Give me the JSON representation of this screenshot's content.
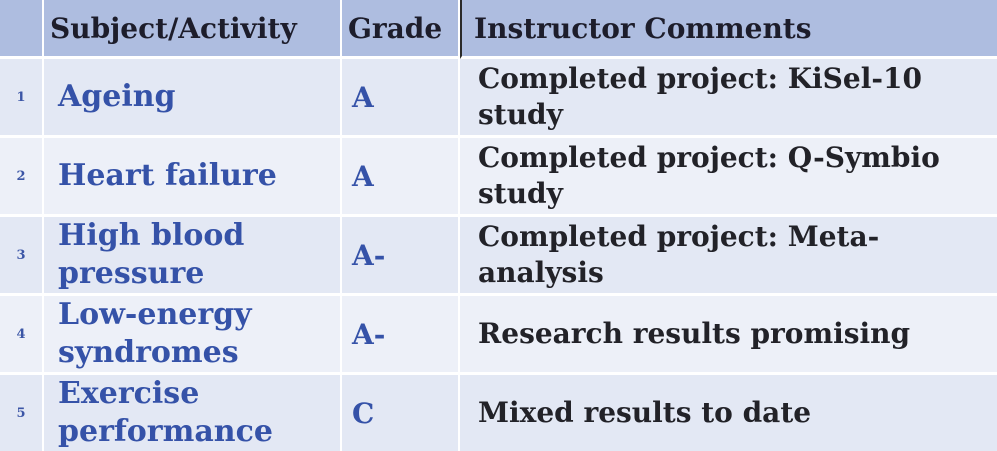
{
  "table": {
    "headers": {
      "num": "",
      "subject": "Subject/Activity",
      "grade": "Grade",
      "comments": "Instructor Comments"
    },
    "rows": [
      {
        "num": "1",
        "subject": "Ageing",
        "grade": "A",
        "comment_line1": "Completed project: KiSel-10",
        "comment_line2": "study"
      },
      {
        "num": "2",
        "subject": "Heart failure",
        "grade": "A",
        "comment_line1": "Completed project: Q-Symbio",
        "comment_line2": "study"
      },
      {
        "num": "3",
        "subject_line1": "High blood",
        "subject_line2": "pressure",
        "grade": "A-",
        "comment_line1": "Completed project: Meta-",
        "comment_line2": "analysis"
      },
      {
        "num": "4",
        "subject_line1": "Low-energy",
        "subject_line2": "syndromes",
        "grade": "A-",
        "comment_line1": "Research results promising"
      },
      {
        "num": "5",
        "subject_line1": "Exercise",
        "subject_line2": "performance",
        "grade": "C",
        "comment_line1": "Mixed results to date"
      }
    ]
  }
}
